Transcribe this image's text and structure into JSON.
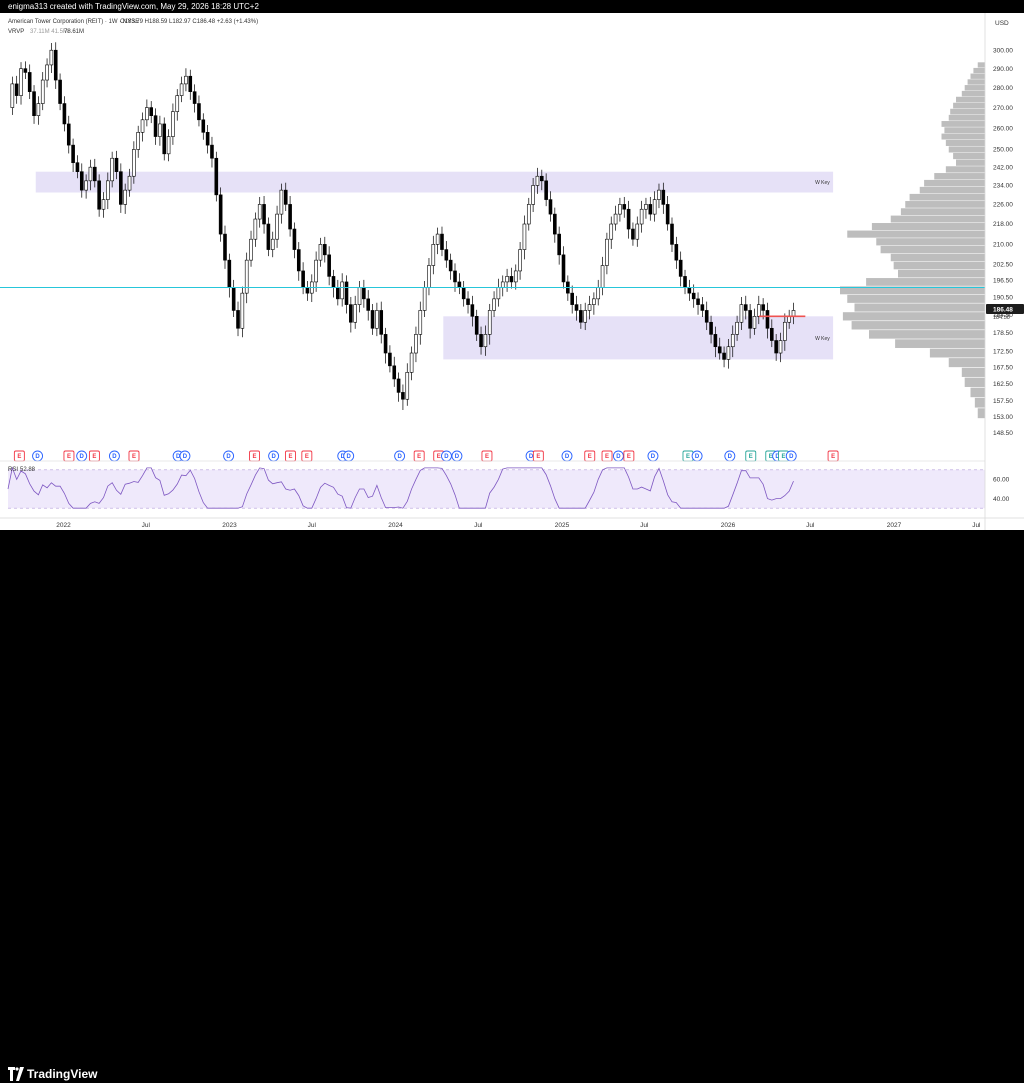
{
  "header": {
    "attribution": "enigma313 created with TradingView.com, May 29, 2026 18:28 UTC+2"
  },
  "legend": {
    "symbol": "American Tower Corporation (REIT) · 1W · NYSE",
    "ohlc": "O183.79 H188.59 L182.97 C186.48 +2.63 (+1.43%)",
    "indicator_name": "VRVP",
    "indicator_values": "37.11M 41.5M",
    "indicator_value_bold": "78.61M",
    "rsi_label": "RSI",
    "rsi_value": "52.88"
  },
  "footer": {
    "brand": "TradingView"
  },
  "colors": {
    "up": "#ffffff",
    "down": "#000000",
    "zone": "#e6e1f7",
    "support_line": "#26c6da",
    "red_line": "#ef5350",
    "volume_profile": "#bdbdbd",
    "rsi_line": "#7e57c2",
    "rsi_band": "#efe9fb",
    "price_label_bg": "#1c1c1c"
  },
  "chart_data": {
    "type": "candlestick",
    "symbol": "AMT",
    "exchange": "NYSE",
    "timeframe": "1W",
    "currency": "USD",
    "ylim": [
      148.5,
      304
    ],
    "y_ticks": [
      300,
      290,
      280,
      270,
      260,
      250,
      242,
      234,
      226,
      218,
      210,
      202.5,
      196.5,
      190.5,
      184.5,
      178.5,
      172.5,
      167.5,
      162.5,
      157.5,
      153,
      148.5
    ],
    "y_tick_labels": [
      "300.00",
      "290.00",
      "280.00",
      "270.00",
      "260.00",
      "250.00",
      "242.00",
      "234.00",
      "226.00",
      "218.00",
      "210.00",
      "202.50",
      "196.50",
      "190.50",
      "184.50",
      "178.50",
      "172.50",
      "167.50",
      "162.50",
      "157.50",
      "153.00",
      "148.50"
    ],
    "x_axis_labels": [
      "2022",
      "Jul",
      "2023",
      "Jul",
      "2024",
      "Jul",
      "2025",
      "Jul",
      "2026",
      "Jul",
      "2027",
      "Jul"
    ],
    "xlim": [
      "2021-09-01",
      "2027-07-20"
    ],
    "x_ticks": [
      "2022-01-01",
      "2022-07-01",
      "2023-01-01",
      "2023-07-01",
      "2024-01-01",
      "2024-07-01",
      "2025-01-01",
      "2025-07-01",
      "2026-01-01",
      "2026-07-01",
      "2027-01-01",
      "2027-07-01"
    ],
    "last_price": 186.48,
    "last_price_label": "186.48",
    "last_price_sublabel": "184.50",
    "zones": [
      {
        "label": "W Key",
        "low": 231,
        "high": 240,
        "x_start": "2021-11-01",
        "x_end": "2026-08-20"
      },
      {
        "label": "W Key",
        "low": 170,
        "high": 184,
        "x_start": "2024-04-15",
        "x_end": "2026-08-20"
      }
    ],
    "horizontal_lines": [
      {
        "kind": "support",
        "price": 194
      }
    ],
    "segments": [
      {
        "kind": "resistance",
        "price": 184,
        "x_start": "2026-03-10",
        "x_end": "2026-06-20"
      }
    ],
    "volume_profile": [
      {
        "price": 292,
        "volume": 0.05
      },
      {
        "price": 289,
        "volume": 0.08
      },
      {
        "price": 286,
        "volume": 0.1
      },
      {
        "price": 283,
        "volume": 0.12
      },
      {
        "price": 280,
        "volume": 0.14
      },
      {
        "price": 277,
        "volume": 0.16
      },
      {
        "price": 274,
        "volume": 0.2
      },
      {
        "price": 271,
        "volume": 0.22
      },
      {
        "price": 268,
        "volume": 0.24
      },
      {
        "price": 265,
        "volume": 0.25
      },
      {
        "price": 262,
        "volume": 0.3
      },
      {
        "price": 259,
        "volume": 0.28
      },
      {
        "price": 256,
        "volume": 0.3
      },
      {
        "price": 253,
        "volume": 0.27
      },
      {
        "price": 250,
        "volume": 0.25
      },
      {
        "price": 247,
        "volume": 0.22
      },
      {
        "price": 244,
        "volume": 0.2
      },
      {
        "price": 241,
        "volume": 0.27
      },
      {
        "price": 238,
        "volume": 0.35
      },
      {
        "price": 235,
        "volume": 0.42
      },
      {
        "price": 232,
        "volume": 0.45
      },
      {
        "price": 229,
        "volume": 0.52
      },
      {
        "price": 226,
        "volume": 0.55
      },
      {
        "price": 223,
        "volume": 0.58
      },
      {
        "price": 220,
        "volume": 0.65
      },
      {
        "price": 217,
        "volume": 0.78
      },
      {
        "price": 214,
        "volume": 0.95
      },
      {
        "price": 211,
        "volume": 0.75
      },
      {
        "price": 208,
        "volume": 0.72
      },
      {
        "price": 205,
        "volume": 0.65
      },
      {
        "price": 202,
        "volume": 0.63
      },
      {
        "price": 199,
        "volume": 0.6
      },
      {
        "price": 196,
        "volume": 0.82
      },
      {
        "price": 193,
        "volume": 1.0
      },
      {
        "price": 190,
        "volume": 0.95
      },
      {
        "price": 187,
        "volume": 0.9
      },
      {
        "price": 184,
        "volume": 0.98
      },
      {
        "price": 181,
        "volume": 0.92
      },
      {
        "price": 178,
        "volume": 0.8
      },
      {
        "price": 175,
        "volume": 0.62
      },
      {
        "price": 172,
        "volume": 0.38
      },
      {
        "price": 169,
        "volume": 0.25
      },
      {
        "price": 166,
        "volume": 0.16
      },
      {
        "price": 163,
        "volume": 0.14
      },
      {
        "price": 160,
        "volume": 0.1
      },
      {
        "price": 157,
        "volume": 0.07
      },
      {
        "price": 154,
        "volume": 0.05
      }
    ],
    "candle_closes": [
      270,
      282,
      276,
      290,
      288,
      278,
      266,
      272,
      284,
      292,
      300,
      284,
      272,
      262,
      252,
      244,
      240,
      232,
      236,
      242,
      236,
      224,
      228,
      236,
      246,
      240,
      226,
      232,
      238,
      250,
      258,
      264,
      270,
      266,
      256,
      262,
      248,
      256,
      268,
      276,
      282,
      286,
      278,
      272,
      264,
      258,
      252,
      246,
      230,
      214,
      204,
      194,
      186,
      180,
      192,
      204,
      212,
      220,
      226,
      218,
      208,
      212,
      222,
      232,
      226,
      216,
      208,
      200,
      194,
      192,
      196,
      204,
      210,
      206,
      198,
      194,
      190,
      196,
      188,
      182,
      188,
      194,
      190,
      186,
      180,
      186,
      178,
      172,
      168,
      164,
      160,
      158,
      166,
      172,
      178,
      186,
      194,
      202,
      210,
      214,
      208,
      204,
      200,
      196,
      194,
      190,
      188,
      184,
      178,
      174,
      178,
      186,
      190,
      194,
      196,
      198,
      196,
      200,
      208,
      218,
      226,
      234,
      238,
      236,
      228,
      222,
      214,
      206,
      196,
      192,
      188,
      186,
      182,
      186,
      188,
      190,
      194,
      202,
      212,
      218,
      222,
      226,
      224,
      216,
      212,
      218,
      224,
      226,
      222,
      228,
      232,
      226,
      218,
      210,
      204,
      198,
      194,
      192,
      190,
      188,
      186,
      182,
      178,
      174,
      172,
      170,
      174,
      178,
      182,
      188,
      186,
      180,
      184,
      188,
      186,
      180,
      176,
      172,
      176,
      182,
      184,
      186
    ]
  },
  "events": [
    {
      "letter": "E",
      "kind": "earnings",
      "date": "2021-09-26"
    },
    {
      "letter": "D",
      "kind": "dividend",
      "date": "2021-11-05"
    },
    {
      "letter": "E",
      "kind": "earnings",
      "date": "2022-01-13"
    },
    {
      "letter": "D",
      "kind": "dividend",
      "date": "2022-02-10"
    },
    {
      "letter": "E",
      "kind": "earnings",
      "date": "2022-03-10"
    },
    {
      "letter": "D",
      "kind": "dividend",
      "date": "2022-04-23"
    },
    {
      "letter": "E",
      "kind": "earnings",
      "date": "2022-06-05"
    },
    {
      "letter": "D",
      "kind": "dividend",
      "date": "2022-09-10"
    },
    {
      "letter": "D",
      "kind": "dividend",
      "date": "2022-09-25"
    },
    {
      "letter": "D",
      "kind": "dividend",
      "date": "2022-12-30"
    },
    {
      "letter": "E",
      "kind": "earnings",
      "date": "2023-02-25"
    },
    {
      "letter": "D",
      "kind": "dividend",
      "date": "2023-04-08"
    },
    {
      "letter": "E",
      "kind": "earnings",
      "date": "2023-05-15"
    },
    {
      "letter": "E",
      "kind": "earnings",
      "date": "2023-06-20"
    },
    {
      "letter": "D",
      "kind": "dividend",
      "date": "2023-09-07"
    },
    {
      "letter": "D",
      "kind": "dividend",
      "date": "2023-09-20"
    },
    {
      "letter": "D",
      "kind": "dividend",
      "date": "2024-01-10"
    },
    {
      "letter": "E",
      "kind": "earnings",
      "date": "2024-02-22"
    },
    {
      "letter": "E",
      "kind": "earnings",
      "date": "2024-04-05"
    },
    {
      "letter": "D",
      "kind": "dividend",
      "date": "2024-04-22"
    },
    {
      "letter": "D",
      "kind": "dividend",
      "date": "2024-05-15"
    },
    {
      "letter": "E",
      "kind": "earnings",
      "date": "2024-07-20"
    },
    {
      "letter": "D",
      "kind": "dividend",
      "date": "2024-10-25"
    },
    {
      "letter": "E",
      "kind": "earnings",
      "date": "2024-11-10"
    },
    {
      "letter": "D",
      "kind": "dividend",
      "date": "2025-01-12"
    },
    {
      "letter": "E",
      "kind": "earnings",
      "date": "2025-03-03"
    },
    {
      "letter": "E",
      "kind": "earnings",
      "date": "2025-04-10"
    },
    {
      "letter": "D",
      "kind": "dividend",
      "date": "2025-05-05"
    },
    {
      "letter": "E",
      "kind": "earnings",
      "date": "2025-05-28"
    },
    {
      "letter": "D",
      "kind": "dividend",
      "date": "2025-07-20"
    },
    {
      "letter": "E",
      "kind": "earnings",
      "date": "2025-10-05"
    },
    {
      "letter": "D",
      "kind": "dividend",
      "date": "2025-10-25"
    },
    {
      "letter": "D",
      "kind": "dividend",
      "date": "2026-01-05"
    },
    {
      "letter": "E",
      "kind": "earnings",
      "date": "2026-02-20"
    },
    {
      "letter": "E",
      "kind": "earnings",
      "date": "2026-04-05"
    },
    {
      "letter": "D",
      "kind": "dividend",
      "date": "2026-04-20"
    },
    {
      "letter": "E",
      "kind": "earnings",
      "date": "2026-05-03"
    },
    {
      "letter": "D",
      "kind": "dividend",
      "date": "2026-05-20"
    },
    {
      "letter": "E",
      "kind": "earnings",
      "date": "2026-08-20"
    }
  ],
  "rsi_panel": {
    "y_ticks": [
      60,
      40
    ],
    "y_tick_labels": [
      "60.00",
      "40.00"
    ],
    "band": [
      30,
      70
    ],
    "ylim": [
      25,
      75
    ]
  }
}
